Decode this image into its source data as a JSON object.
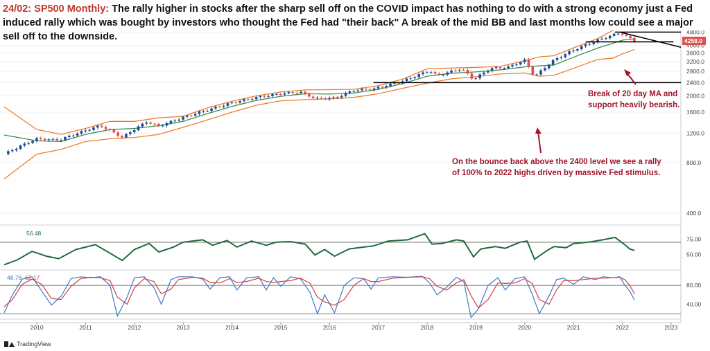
{
  "headline": {
    "tag": "24/02: SP500 Monthly:",
    "text": "The rally higher in stocks after the sharp sell off on the COVID impact has nothing to do with a strong economy just a Fed induced rally which was bought by investors who thought the Fed had \"their back\" A break of the mid BB and last months low could see a major sell off to the downside."
  },
  "annotations": {
    "ma_break": [
      "Break of 20 day MA and",
      "support heavily bearish."
    ],
    "bounce": [
      "On the bounce back above the 2400 level we see a rally",
      "of 100% to 2022 highs driven by massive Fed stimulus."
    ]
  },
  "brand": "TradingView",
  "colors": {
    "up": "#1f4e99",
    "down": "#e05050",
    "upper_band": "#f07c2a",
    "lower_band": "#f07c2a",
    "ma20": "#3d8a4a",
    "rsi": "#1f6b3c",
    "stoch_k": "#3a78c9",
    "stoch_d": "#d63c3c",
    "levels": "#000000",
    "annotation": "#a0152a",
    "price_tag": "#e05050"
  },
  "chart_data": {
    "type": "candlestick",
    "symbol": "SP500",
    "timeframe": "Monthly",
    "x_labels": [
      "2010",
      "2011",
      "2012",
      "2013",
      "2014",
      "2015",
      "2016",
      "2017",
      "2018",
      "2019",
      "2020",
      "2021",
      "2022",
      "2023"
    ],
    "x_range": [
      2009.33,
      2023.2
    ],
    "price_axis": {
      "ticks": [
        400,
        800,
        1200,
        1600,
        2000,
        2400,
        2800,
        3200,
        3600,
        4000,
        4800
      ],
      "range": [
        350,
        5100
      ]
    },
    "last_price": "4258.0",
    "horizontal_levels": [
      {
        "value": 4800,
        "from": 2021.85,
        "to": 2023.2
      },
      {
        "value": 4200,
        "from": 2021.25,
        "to": 2023.05
      },
      {
        "value": 2400,
        "from": 2016.9,
        "to": 2023.2
      }
    ],
    "trendline": {
      "from": [
        2021.95,
        4800
      ],
      "to": [
        2023.2,
        3900
      ]
    },
    "price_anchors": [
      [
        2009.33,
        900
      ],
      [
        2010.0,
        1110
      ],
      [
        2010.45,
        1090
      ],
      [
        2011.3,
        1330
      ],
      [
        2011.75,
        1130
      ],
      [
        2012.25,
        1400
      ],
      [
        2012.5,
        1320
      ],
      [
        2013.0,
        1490
      ],
      [
        2013.5,
        1650
      ],
      [
        2014.0,
        1820
      ],
      [
        2014.5,
        1960
      ],
      [
        2015.0,
        2060
      ],
      [
        2015.4,
        2110
      ],
      [
        2015.7,
        1930
      ],
      [
        2016.1,
        1940
      ],
      [
        2016.5,
        2160
      ],
      [
        2016.9,
        2200
      ],
      [
        2017.5,
        2450
      ],
      [
        2018.05,
        2830
      ],
      [
        2018.2,
        2640
      ],
      [
        2018.7,
        2910
      ],
      [
        2018.95,
        2500
      ],
      [
        2019.3,
        2920
      ],
      [
        2019.65,
        2960
      ],
      [
        2020.0,
        3260
      ],
      [
        2020.2,
        2590
      ],
      [
        2020.6,
        3270
      ],
      [
        2021.0,
        3750
      ],
      [
        2021.5,
        4300
      ],
      [
        2021.95,
        4760
      ],
      [
        2022.08,
        4520
      ],
      [
        2022.25,
        4258
      ]
    ],
    "bands": {
      "upper": [
        [
          2009.33,
          1720
        ],
        [
          2010.0,
          1260
        ],
        [
          2010.5,
          1180
        ],
        [
          2011.0,
          1280
        ],
        [
          2011.5,
          1410
        ],
        [
          2012.0,
          1410
        ],
        [
          2012.5,
          1480
        ],
        [
          2013.0,
          1510
        ],
        [
          2013.5,
          1700
        ],
        [
          2014.0,
          1860
        ],
        [
          2014.5,
          2000
        ],
        [
          2015.0,
          2110
        ],
        [
          2015.5,
          2170
        ],
        [
          2016.0,
          2180
        ],
        [
          2016.5,
          2190
        ],
        [
          2017.0,
          2300
        ],
        [
          2017.5,
          2520
        ],
        [
          2018.0,
          2900
        ],
        [
          2018.5,
          2930
        ],
        [
          2019.0,
          2960
        ],
        [
          2019.5,
          3000
        ],
        [
          2020.0,
          3240
        ],
        [
          2020.3,
          3420
        ],
        [
          2020.6,
          3470
        ],
        [
          2021.0,
          3870
        ],
        [
          2021.5,
          4400
        ],
        [
          2021.8,
          4900
        ],
        [
          2022.0,
          5000
        ],
        [
          2022.25,
          4980
        ]
      ],
      "middle": [
        [
          2009.33,
          1170
        ],
        [
          2010.0,
          1080
        ],
        [
          2010.5,
          1070
        ],
        [
          2011.0,
          1180
        ],
        [
          2011.5,
          1260
        ],
        [
          2012.0,
          1280
        ],
        [
          2012.5,
          1330
        ],
        [
          2013.0,
          1410
        ],
        [
          2013.5,
          1570
        ],
        [
          2014.0,
          1730
        ],
        [
          2014.5,
          1880
        ],
        [
          2015.0,
          1990
        ],
        [
          2015.5,
          2060
        ],
        [
          2016.0,
          2050
        ],
        [
          2016.5,
          2080
        ],
        [
          2017.0,
          2190
        ],
        [
          2017.5,
          2370
        ],
        [
          2018.0,
          2620
        ],
        [
          2018.5,
          2730
        ],
        [
          2019.0,
          2780
        ],
        [
          2019.5,
          2860
        ],
        [
          2020.0,
          2980
        ],
        [
          2020.3,
          3020
        ],
        [
          2020.6,
          3060
        ],
        [
          2021.0,
          3400
        ],
        [
          2021.5,
          3860
        ],
        [
          2021.8,
          4110
        ],
        [
          2022.0,
          4300
        ],
        [
          2022.25,
          4380
        ]
      ],
      "lower": [
        [
          2009.33,
          640
        ],
        [
          2010.0,
          900
        ],
        [
          2010.5,
          960
        ],
        [
          2011.0,
          1070
        ],
        [
          2011.5,
          1110
        ],
        [
          2012.0,
          1130
        ],
        [
          2012.5,
          1180
        ],
        [
          2013.0,
          1300
        ],
        [
          2013.5,
          1440
        ],
        [
          2014.0,
          1600
        ],
        [
          2014.5,
          1760
        ],
        [
          2015.0,
          1870
        ],
        [
          2015.5,
          1900
        ],
        [
          2016.0,
          1920
        ],
        [
          2016.5,
          1960
        ],
        [
          2017.0,
          2060
        ],
        [
          2017.5,
          2220
        ],
        [
          2018.0,
          2380
        ],
        [
          2018.5,
          2530
        ],
        [
          2019.0,
          2600
        ],
        [
          2019.5,
          2700
        ],
        [
          2020.0,
          2740
        ],
        [
          2020.3,
          2620
        ],
        [
          2020.6,
          2650
        ],
        [
          2021.0,
          2920
        ],
        [
          2021.5,
          3300
        ],
        [
          2021.8,
          3350
        ],
        [
          2022.0,
          3560
        ],
        [
          2022.25,
          3780
        ]
      ]
    },
    "rsi": {
      "label": "56.48",
      "ticks": [
        50,
        75
      ],
      "range": [
        30,
        95
      ],
      "reference_level": 70,
      "anchors": [
        [
          2009.33,
          33
        ],
        [
          2009.6,
          41
        ],
        [
          2009.9,
          55
        ],
        [
          2010.2,
          47
        ],
        [
          2010.45,
          43
        ],
        [
          2010.8,
          58
        ],
        [
          2011.2,
          66
        ],
        [
          2011.5,
          52
        ],
        [
          2011.75,
          40
        ],
        [
          2012.0,
          58
        ],
        [
          2012.3,
          68
        ],
        [
          2012.5,
          54
        ],
        [
          2012.8,
          62
        ],
        [
          2013.0,
          70
        ],
        [
          2013.4,
          74
        ],
        [
          2013.6,
          65
        ],
        [
          2013.9,
          73
        ],
        [
          2014.1,
          62
        ],
        [
          2014.4,
          72
        ],
        [
          2014.7,
          65
        ],
        [
          2014.9,
          70
        ],
        [
          2015.2,
          71
        ],
        [
          2015.5,
          67
        ],
        [
          2015.7,
          49
        ],
        [
          2015.9,
          58
        ],
        [
          2016.1,
          47
        ],
        [
          2016.4,
          59
        ],
        [
          2016.7,
          62
        ],
        [
          2016.9,
          64
        ],
        [
          2017.2,
          72
        ],
        [
          2017.6,
          74
        ],
        [
          2017.95,
          84
        ],
        [
          2018.1,
          67
        ],
        [
          2018.3,
          68
        ],
        [
          2018.6,
          74
        ],
        [
          2018.75,
          72
        ],
        [
          2018.95,
          46
        ],
        [
          2019.1,
          59
        ],
        [
          2019.4,
          63
        ],
        [
          2019.6,
          60
        ],
        [
          2019.9,
          70
        ],
        [
          2020.05,
          72
        ],
        [
          2020.2,
          42
        ],
        [
          2020.45,
          56
        ],
        [
          2020.6,
          63
        ],
        [
          2020.85,
          61
        ],
        [
          2021.0,
          68
        ],
        [
          2021.3,
          70
        ],
        [
          2021.6,
          74
        ],
        [
          2021.85,
          78
        ],
        [
          2022.05,
          66
        ],
        [
          2022.15,
          59
        ],
        [
          2022.25,
          56.48
        ]
      ]
    },
    "stochastic": {
      "k_label": "48.78",
      "d_label": "62.17",
      "ticks": [
        40,
        80
      ],
      "range": [
        10,
        105
      ],
      "reference_levels": [
        80,
        20
      ],
      "k_anchors": [
        [
          2009.33,
          22
        ],
        [
          2009.5,
          60
        ],
        [
          2009.7,
          93
        ],
        [
          2009.9,
          98
        ],
        [
          2010.1,
          68
        ],
        [
          2010.3,
          38
        ],
        [
          2010.5,
          57
        ],
        [
          2010.7,
          94
        ],
        [
          2010.9,
          98
        ],
        [
          2011.1,
          96
        ],
        [
          2011.3,
          98
        ],
        [
          2011.5,
          80
        ],
        [
          2011.65,
          15
        ],
        [
          2011.85,
          55
        ],
        [
          2012.0,
          96
        ],
        [
          2012.2,
          98
        ],
        [
          2012.4,
          75
        ],
        [
          2012.55,
          40
        ],
        [
          2012.75,
          92
        ],
        [
          2012.9,
          98
        ],
        [
          2013.2,
          98
        ],
        [
          2013.4,
          93
        ],
        [
          2013.55,
          72
        ],
        [
          2013.75,
          96
        ],
        [
          2013.95,
          98
        ],
        [
          2014.1,
          70
        ],
        [
          2014.3,
          96
        ],
        [
          2014.55,
          98
        ],
        [
          2014.7,
          70
        ],
        [
          2014.85,
          96
        ],
        [
          2015.0,
          78
        ],
        [
          2015.2,
          98
        ],
        [
          2015.4,
          94
        ],
        [
          2015.6,
          65
        ],
        [
          2015.75,
          20
        ],
        [
          2015.9,
          60
        ],
        [
          2016.1,
          22
        ],
        [
          2016.3,
          80
        ],
        [
          2016.5,
          96
        ],
        [
          2016.7,
          94
        ],
        [
          2016.85,
          72
        ],
        [
          2017.0,
          96
        ],
        [
          2017.3,
          98
        ],
        [
          2017.6,
          97
        ],
        [
          2017.9,
          99
        ],
        [
          2018.05,
          85
        ],
        [
          2018.2,
          60
        ],
        [
          2018.4,
          76
        ],
        [
          2018.6,
          97
        ],
        [
          2018.75,
          88
        ],
        [
          2018.9,
          12
        ],
        [
          2019.05,
          30
        ],
        [
          2019.25,
          80
        ],
        [
          2019.45,
          96
        ],
        [
          2019.6,
          70
        ],
        [
          2019.8,
          94
        ],
        [
          2020.0,
          98
        ],
        [
          2020.15,
          62
        ],
        [
          2020.3,
          20
        ],
        [
          2020.5,
          58
        ],
        [
          2020.65,
          92
        ],
        [
          2020.8,
          95
        ],
        [
          2021.0,
          82
        ],
        [
          2021.2,
          98
        ],
        [
          2021.45,
          92
        ],
        [
          2021.6,
          98
        ],
        [
          2021.8,
          96
        ],
        [
          2021.95,
          98
        ],
        [
          2022.05,
          80
        ],
        [
          2022.15,
          68
        ],
        [
          2022.25,
          48.78
        ]
      ],
      "d_anchors": [
        [
          2009.33,
          35
        ],
        [
          2009.5,
          50
        ],
        [
          2009.7,
          82
        ],
        [
          2009.9,
          93
        ],
        [
          2010.1,
          82
        ],
        [
          2010.3,
          52
        ],
        [
          2010.5,
          50
        ],
        [
          2010.7,
          78
        ],
        [
          2010.9,
          94
        ],
        [
          2011.1,
          97
        ],
        [
          2011.3,
          96
        ],
        [
          2011.5,
          90
        ],
        [
          2011.65,
          55
        ],
        [
          2011.85,
          40
        ],
        [
          2012.0,
          75
        ],
        [
          2012.2,
          94
        ],
        [
          2012.4,
          88
        ],
        [
          2012.55,
          62
        ],
        [
          2012.75,
          72
        ],
        [
          2012.9,
          92
        ],
        [
          2013.2,
          97
        ],
        [
          2013.4,
          95
        ],
        [
          2013.55,
          86
        ],
        [
          2013.75,
          85
        ],
        [
          2013.95,
          94
        ],
        [
          2014.1,
          86
        ],
        [
          2014.3,
          88
        ],
        [
          2014.55,
          95
        ],
        [
          2014.7,
          88
        ],
        [
          2014.85,
          86
        ],
        [
          2015.0,
          88
        ],
        [
          2015.2,
          90
        ],
        [
          2015.4,
          95
        ],
        [
          2015.6,
          84
        ],
        [
          2015.75,
          55
        ],
        [
          2015.9,
          45
        ],
        [
          2016.1,
          38
        ],
        [
          2016.3,
          50
        ],
        [
          2016.5,
          80
        ],
        [
          2016.7,
          94
        ],
        [
          2016.85,
          88
        ],
        [
          2017.0,
          88
        ],
        [
          2017.3,
          95
        ],
        [
          2017.6,
          97
        ],
        [
          2017.9,
          98
        ],
        [
          2018.05,
          94
        ],
        [
          2018.2,
          78
        ],
        [
          2018.4,
          70
        ],
        [
          2018.6,
          85
        ],
        [
          2018.75,
          92
        ],
        [
          2018.9,
          58
        ],
        [
          2019.05,
          32
        ],
        [
          2019.25,
          50
        ],
        [
          2019.45,
          85
        ],
        [
          2019.6,
          84
        ],
        [
          2019.8,
          85
        ],
        [
          2020.0,
          94
        ],
        [
          2020.15,
          84
        ],
        [
          2020.3,
          50
        ],
        [
          2020.5,
          40
        ],
        [
          2020.65,
          70
        ],
        [
          2020.8,
          90
        ],
        [
          2021.0,
          90
        ],
        [
          2021.2,
          92
        ],
        [
          2021.45,
          95
        ],
        [
          2021.6,
          95
        ],
        [
          2021.8,
          96
        ],
        [
          2021.95,
          97
        ],
        [
          2022.05,
          92
        ],
        [
          2022.15,
          80
        ],
        [
          2022.25,
          62.17
        ]
      ]
    }
  }
}
